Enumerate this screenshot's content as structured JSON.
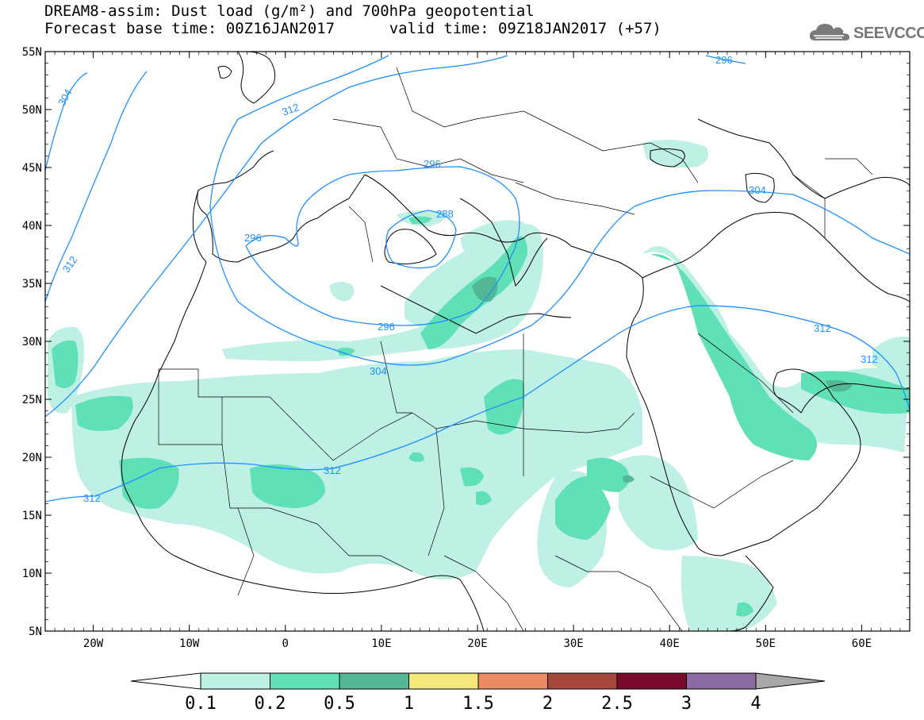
{
  "title": {
    "line1": "DREAM8-assim: Dust load (g/m²) and 700hPa geopotential",
    "line2_base_label": "Forecast base time: 00Z16JAN2017",
    "line2_valid_label": "valid time: 09Z18JAN2017 (+57)"
  },
  "logo": {
    "text": "SEEVCCC",
    "icon": "cloud-logo-icon"
  },
  "map": {
    "lon_range": [
      -25,
      65
    ],
    "lat_range": [
      5,
      55
    ],
    "lat_ticks": [
      "55N",
      "50N",
      "45N",
      "40N",
      "35N",
      "30N",
      "25N",
      "20N",
      "15N",
      "10N",
      "5N"
    ],
    "lon_ticks": [
      "20W",
      "10W",
      "0",
      "10E",
      "20E",
      "30E",
      "40E",
      "50E",
      "60E"
    ]
  },
  "contours": {
    "color": "#1e90ff",
    "labels": [
      "296",
      "304",
      "312",
      "312",
      "296",
      "296",
      "288",
      "296",
      "304",
      "312",
      "312",
      "304",
      "312",
      "312"
    ]
  },
  "dust_colors": {
    "c1": "#bff0e6",
    "c2": "#5fe0b7",
    "c3": "#52b893",
    "c4": "#5f9e86"
  },
  "colorbar": {
    "labels": [
      "0.1",
      "0.2",
      "0.5",
      "1",
      "1.5",
      "2",
      "2.5",
      "3",
      "4"
    ],
    "colors": [
      "#ffffff",
      "#bff0e6",
      "#5fe0b7",
      "#52b893",
      "#f5e87a",
      "#eb8b64",
      "#a8483c",
      "#7a0a2b",
      "#8a6aa0",
      "#a8a8a8"
    ]
  }
}
